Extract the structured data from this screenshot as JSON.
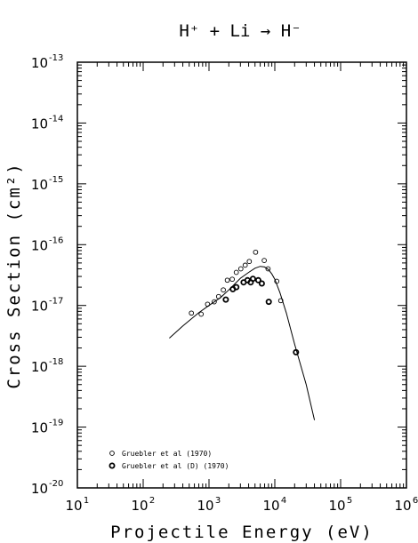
{
  "chart_data": {
    "type": "scatter",
    "title": "H⁺ + Li → H⁻",
    "xlabel": "Projectile Energy (eV)",
    "ylabel": "Cross Section (cm²)",
    "xscale": "log",
    "yscale": "log",
    "xlim": [
      10,
      1000000
    ],
    "ylim": [
      1e-20,
      1e-13
    ],
    "x_tick_exponents": [
      "1",
      "2",
      "3",
      "4",
      "5",
      "6"
    ],
    "y_tick_exponents": [
      "-13",
      "-14",
      "-15",
      "-16",
      "-17",
      "-18",
      "-19",
      "-20"
    ],
    "tick_base": "10",
    "legend_position": "bottom-left",
    "series": [
      {
        "name": "Gruebler et al (1970)",
        "marker": "open-circle",
        "points": [
          [
            540,
            7.5e-18
          ],
          [
            760,
            7.2e-18
          ],
          [
            950,
            1.05e-17
          ],
          [
            1200,
            1.15e-17
          ],
          [
            1400,
            1.4e-17
          ],
          [
            1650,
            1.8e-17
          ],
          [
            1900,
            2.6e-17
          ],
          [
            2250,
            2.7e-17
          ],
          [
            2600,
            3.5e-17
          ],
          [
            3050,
            4e-17
          ],
          [
            3550,
            4.6e-17
          ],
          [
            4100,
            5.3e-17
          ],
          [
            5100,
            7.5e-17
          ],
          [
            6900,
            5.5e-17
          ],
          [
            7900,
            4e-17
          ],
          [
            10700,
            2.5e-17
          ],
          [
            12300,
            1.2e-17
          ]
        ]
      },
      {
        "name": "Gruebler et al (D) (1970)",
        "marker": "bold-circle",
        "points": [
          [
            1800,
            1.25e-17
          ],
          [
            2300,
            1.85e-17
          ],
          [
            2600,
            2e-17
          ],
          [
            3350,
            2.4e-17
          ],
          [
            3850,
            2.6e-17
          ],
          [
            4300,
            2.4e-17
          ],
          [
            4650,
            2.75e-17
          ],
          [
            5600,
            2.6e-17
          ],
          [
            6350,
            2.3e-17
          ],
          [
            8100,
            1.15e-17
          ],
          [
            21000,
            1.7e-18
          ]
        ]
      },
      {
        "name": "",
        "type": "line",
        "points": [
          [
            250,
            2.9e-18
          ],
          [
            400,
            4.6e-18
          ],
          [
            700,
            7.6e-18
          ],
          [
            1000,
            1e-17
          ],
          [
            1500,
            1.35e-17
          ],
          [
            2000,
            1.8e-17
          ],
          [
            3000,
            2.8e-17
          ],
          [
            4000,
            3.5e-17
          ],
          [
            5000,
            4.1e-17
          ],
          [
            6000,
            4.4e-17
          ],
          [
            7000,
            4.3e-17
          ],
          [
            8000,
            3.9e-17
          ],
          [
            9000,
            3.3e-17
          ],
          [
            10000,
            2.7e-17
          ],
          [
            12000,
            1.6e-17
          ],
          [
            15000,
            7.5e-18
          ],
          [
            20000,
            2.3e-18
          ],
          [
            30000,
            5e-19
          ],
          [
            40000,
            1.3e-19
          ]
        ]
      }
    ]
  }
}
